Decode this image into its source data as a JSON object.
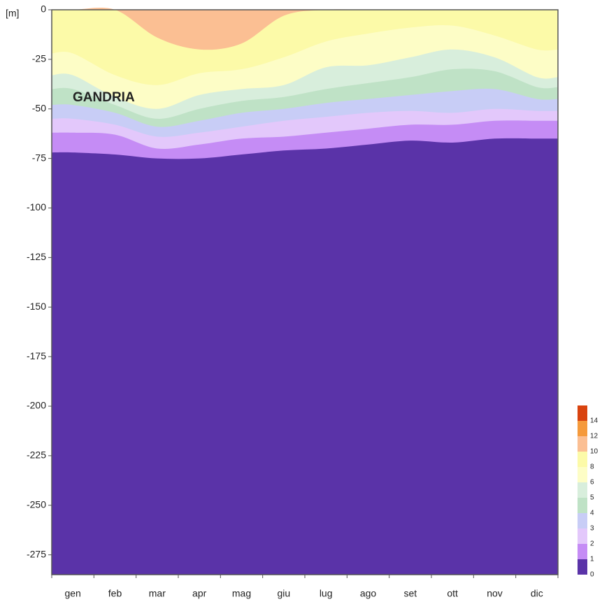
{
  "chart_data": {
    "type": "contour",
    "annotation": "GANDRIA",
    "y_label": "[m]",
    "categories": [
      "gen",
      "feb",
      "mar",
      "apr",
      "mag",
      "giu",
      "lug",
      "ago",
      "set",
      "ott",
      "nov",
      "dic"
    ],
    "ylim": [
      -285,
      0
    ],
    "yticks": [
      0,
      -25,
      -50,
      -75,
      -100,
      -125,
      -150,
      -175,
      -200,
      -225,
      -250,
      -275
    ],
    "levels": [
      0,
      1,
      2,
      3,
      4,
      5,
      6,
      8,
      10,
      12,
      14
    ],
    "colors": [
      "#5a33a8",
      "#c58cf5",
      "#e3c8fb",
      "#c8cdf6",
      "#bfe2c6",
      "#d8eedc",
      "#fdfdc6",
      "#fcfaa8",
      "#fbbf93",
      "#f59a3c",
      "#d9430f"
    ],
    "isolines": [
      {
        "values": [
          -72,
          -73,
          -75,
          -75,
          -73,
          -71,
          -70,
          -68,
          -66,
          -67,
          -65,
          -65
        ]
      },
      {
        "values": [
          -62,
          -63,
          -70,
          -68,
          -65,
          -64,
          -62,
          -60,
          -58,
          -58,
          -56,
          -56
        ]
      },
      {
        "values": [
          -55,
          -58,
          -64,
          -62,
          -59,
          -56,
          -54,
          -52,
          -51,
          -52,
          -50,
          -51
        ]
      },
      {
        "values": [
          -48,
          -52,
          -59,
          -56,
          -52,
          -50,
          -47,
          -45,
          -43,
          -41,
          -40,
          -45
        ]
      },
      {
        "values": [
          -40,
          -48,
          -55,
          -50,
          -46,
          -44,
          -40,
          -37,
          -34,
          -30,
          -31,
          -39
        ]
      },
      {
        "values": [
          -33,
          -44,
          -50,
          -43,
          -40,
          -38,
          -29,
          -28,
          -24,
          -20,
          -24,
          -34
        ]
      },
      {
        "values": [
          -22,
          -33,
          -38,
          -32,
          -30,
          -24,
          -16,
          -12,
          -9,
          -8,
          -13,
          -20
        ]
      },
      {
        "values": [
          0,
          0,
          -14,
          -20,
          -17,
          -3,
          0,
          0,
          0,
          0,
          0,
          0
        ]
      }
    ]
  }
}
